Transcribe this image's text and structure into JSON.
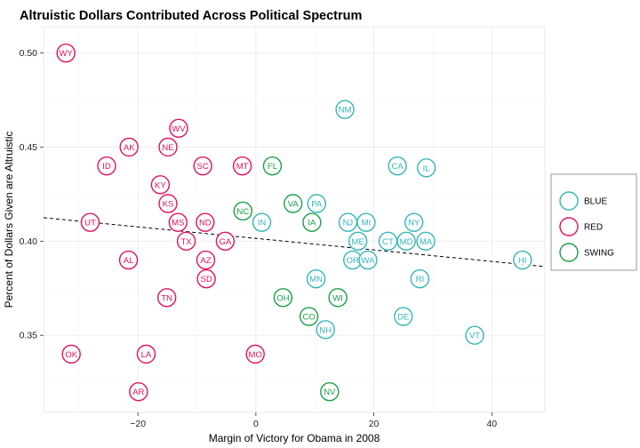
{
  "chart_data": {
    "type": "scatter",
    "title": "Altruistic Dollars Contributed Across Political Spectrum",
    "xlabel": "Margin of Victory for Obama in 2008",
    "ylabel": "Percent of Dollars Given are Altruistic",
    "xlim": [
      -36,
      49
    ],
    "ylim": [
      0.309,
      0.514
    ],
    "xticks": [
      -20,
      0,
      20,
      40
    ],
    "xtick_labels": [
      "−20",
      "0",
      "20",
      "40"
    ],
    "yticks": [
      0.35,
      0.4,
      0.45,
      0.5
    ],
    "ytick_labels": [
      "0.35",
      "0.40",
      "0.45",
      "0.50"
    ],
    "grid": true,
    "legend_position": "right",
    "trendline": {
      "style": "dashed",
      "color": "#000000",
      "x": [
        -36,
        49
      ],
      "y": [
        0.4125,
        0.3865
      ]
    },
    "series": [
      {
        "name": "BLUE",
        "color": "#35B5B5",
        "points": [
          {
            "label": "NM",
            "x": 15.1,
            "y": 0.47
          },
          {
            "label": "CA",
            "x": 24.0,
            "y": 0.44
          },
          {
            "label": "IL",
            "x": 28.9,
            "y": 0.439
          },
          {
            "label": "PA",
            "x": 10.3,
            "y": 0.42
          },
          {
            "label": "IN",
            "x": 1.0,
            "y": 0.41
          },
          {
            "label": "NJ",
            "x": 15.6,
            "y": 0.41
          },
          {
            "label": "MI",
            "x": 18.7,
            "y": 0.41
          },
          {
            "label": "NY",
            "x": 26.8,
            "y": 0.41
          },
          {
            "label": "ME",
            "x": 17.3,
            "y": 0.4
          },
          {
            "label": "CT",
            "x": 22.4,
            "y": 0.4
          },
          {
            "label": "MD",
            "x": 25.5,
            "y": 0.4
          },
          {
            "label": "MA",
            "x": 28.8,
            "y": 0.4
          },
          {
            "label": "OR",
            "x": 16.4,
            "y": 0.39
          },
          {
            "label": "WA",
            "x": 19.0,
            "y": 0.39
          },
          {
            "label": "HI",
            "x": 45.2,
            "y": 0.39
          },
          {
            "label": "MN",
            "x": 10.2,
            "y": 0.38
          },
          {
            "label": "RI",
            "x": 27.8,
            "y": 0.38
          },
          {
            "label": "DE",
            "x": 25.0,
            "y": 0.36
          },
          {
            "label": "NH",
            "x": 11.8,
            "y": 0.353
          },
          {
            "label": "VT",
            "x": 37.1,
            "y": 0.35
          }
        ]
      },
      {
        "name": "RED",
        "color": "#E0115F",
        "points": [
          {
            "label": "WY",
            "x": -32.2,
            "y": 0.5
          },
          {
            "label": "WV",
            "x": -13.1,
            "y": 0.46
          },
          {
            "label": "AK",
            "x": -21.5,
            "y": 0.45
          },
          {
            "label": "NE",
            "x": -14.9,
            "y": 0.45
          },
          {
            "label": "ID",
            "x": -25.3,
            "y": 0.44
          },
          {
            "label": "SC",
            "x": -9.0,
            "y": 0.44
          },
          {
            "label": "MT",
            "x": -2.3,
            "y": 0.44
          },
          {
            "label": "KY",
            "x": -16.2,
            "y": 0.43
          },
          {
            "label": "KS",
            "x": -14.9,
            "y": 0.42
          },
          {
            "label": "UT",
            "x": -28.1,
            "y": 0.41
          },
          {
            "label": "MS",
            "x": -13.2,
            "y": 0.41
          },
          {
            "label": "ND",
            "x": -8.6,
            "y": 0.41
          },
          {
            "label": "TX",
            "x": -11.8,
            "y": 0.4
          },
          {
            "label": "GA",
            "x": -5.2,
            "y": 0.4
          },
          {
            "label": "AL",
            "x": -21.6,
            "y": 0.39
          },
          {
            "label": "AZ",
            "x": -8.5,
            "y": 0.39
          },
          {
            "label": "SD",
            "x": -8.4,
            "y": 0.38
          },
          {
            "label": "TN",
            "x": -15.1,
            "y": 0.37
          },
          {
            "label": "OK",
            "x": -31.3,
            "y": 0.34
          },
          {
            "label": "LA",
            "x": -18.6,
            "y": 0.34
          },
          {
            "label": "MO",
            "x": -0.1,
            "y": 0.34
          },
          {
            "label": "AR",
            "x": -19.9,
            "y": 0.32
          }
        ]
      },
      {
        "name": "SWING",
        "color": "#1A9E47",
        "points": [
          {
            "label": "FL",
            "x": 2.8,
            "y": 0.44
          },
          {
            "label": "VA",
            "x": 6.3,
            "y": 0.42
          },
          {
            "label": "NC",
            "x": -2.2,
            "y": 0.416
          },
          {
            "label": "IA",
            "x": 9.5,
            "y": 0.41
          },
          {
            "label": "OH",
            "x": 4.6,
            "y": 0.37
          },
          {
            "label": "WI",
            "x": 13.9,
            "y": 0.37
          },
          {
            "label": "CO",
            "x": 9.0,
            "y": 0.36
          },
          {
            "label": "NV",
            "x": 12.5,
            "y": 0.32
          }
        ]
      }
    ]
  }
}
